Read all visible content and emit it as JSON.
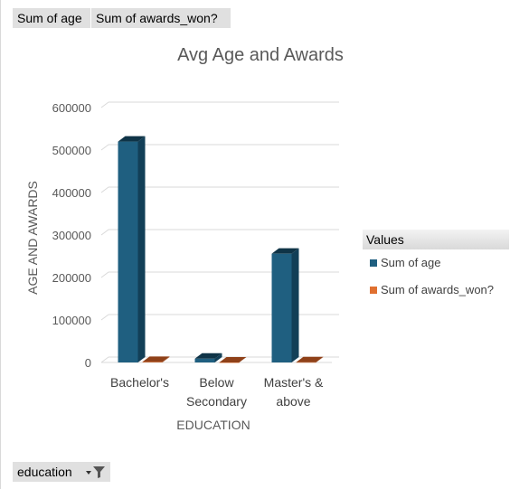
{
  "field_buttons": [
    "Sum of age",
    "Sum of awards_won?"
  ],
  "filter": {
    "label": "education"
  },
  "legend": {
    "title": "Values",
    "items": [
      "Sum of age",
      "Sum of awards_won?"
    ]
  },
  "colors": {
    "age": "#1f5f80",
    "awards": "#e07030"
  },
  "chart_data": {
    "type": "bar",
    "title": "Avg Age and Awards",
    "xlabel": "EDUCATION",
    "ylabel": "AGE AND AWARDS",
    "categories": [
      [
        "Bachelor's"
      ],
      [
        "Below",
        "Secondary"
      ],
      [
        "Master's &",
        "above"
      ]
    ],
    "series": [
      {
        "name": "Sum of age",
        "values": [
          520000,
          9000,
          256000
        ]
      },
      {
        "name": "Sum of awards_won?",
        "values": [
          1200,
          50,
          600
        ]
      }
    ],
    "ylim": [
      0,
      600000
    ],
    "yticks": [
      0,
      100000,
      200000,
      300000,
      400000,
      500000,
      600000
    ],
    "ytick_labels": [
      "0",
      "100000",
      "200000",
      "300000",
      "400000",
      "500000",
      "600000"
    ],
    "grid": true,
    "legend_position": "right"
  }
}
